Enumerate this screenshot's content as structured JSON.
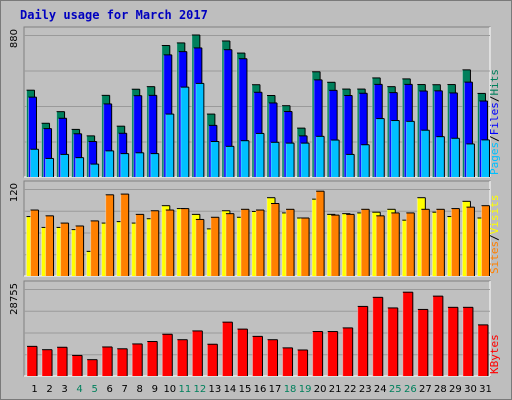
{
  "title": "Daily usage for March 2017",
  "colors": {
    "title": "#0000c0",
    "hits": "#00805c",
    "files": "#0000ff",
    "pages": "#00c0ff",
    "visits": "#ffff00",
    "sites": "#ff8000",
    "kbytes": "#ff0000",
    "weekend": "#00805c",
    "panel_bg": "#bebebe",
    "chart_bg": "#c0c0c0"
  },
  "chart_data": [
    {
      "type": "bar",
      "max_label": "880",
      "ylim": [
        0,
        880
      ],
      "legend": [
        {
          "label": "Pages",
          "color_key": "pages"
        },
        {
          "label": "/",
          "color_key": "sep"
        },
        {
          "label": "Files",
          "color_key": "files"
        },
        {
          "label": "/",
          "color_key": "sep"
        },
        {
          "label": "Hits",
          "color_key": "hits"
        }
      ],
      "categories": [
        "1",
        "2",
        "3",
        "4",
        "5",
        "6",
        "7",
        "8",
        "9",
        "10",
        "11",
        "12",
        "13",
        "14",
        "15",
        "16",
        "17",
        "18",
        "19",
        "20",
        "21",
        "22",
        "23",
        "24",
        "25",
        "26",
        "27",
        "28",
        "29",
        "30",
        "31"
      ],
      "series": [
        {
          "name": "Hits",
          "color_key": "hits",
          "values": [
            538,
            333,
            405,
            295,
            255,
            506,
            315,
            544,
            560,
            815,
            831,
            880,
            390,
            843,
            768,
            572,
            505,
            442,
            303,
            652,
            587,
            545,
            545,
            614,
            560,
            608,
            573,
            572,
            573,
            664,
            518
          ]
        },
        {
          "name": "Files",
          "color_key": "files",
          "values": [
            495,
            300,
            364,
            268,
            220,
            453,
            271,
            504,
            506,
            757,
            777,
            800,
            320,
            789,
            733,
            525,
            459,
            406,
            255,
            602,
            537,
            505,
            519,
            574,
            523,
            574,
            533,
            534,
            521,
            588,
            471
          ]
        },
        {
          "name": "Pages",
          "color_key": "pages",
          "values": [
            172,
            115,
            140,
            120,
            80,
            162,
            145,
            150,
            145,
            390,
            557,
            580,
            220,
            190,
            225,
            270,
            215,
            210,
            210,
            252,
            229,
            140,
            200,
            362,
            350,
            345,
            290,
            250,
            240,
            205,
            230
          ]
        }
      ]
    },
    {
      "type": "bar",
      "max_label": "120",
      "ylim": [
        0,
        120
      ],
      "legend": [
        {
          "label": "Sites",
          "color_key": "sites"
        },
        {
          "label": "/",
          "color_key": "sep"
        },
        {
          "label": "Visits",
          "color_key": "visits"
        }
      ],
      "categories": [
        "1",
        "2",
        "3",
        "4",
        "5",
        "6",
        "7",
        "8",
        "9",
        "10",
        "11",
        "12",
        "13",
        "14",
        "15",
        "16",
        "17",
        "18",
        "19",
        "20",
        "21",
        "22",
        "23",
        "24",
        "25",
        "26",
        "27",
        "28",
        "29",
        "30",
        "31"
      ],
      "series": [
        {
          "name": "Visits",
          "color_key": "visits",
          "values": [
            82,
            67,
            67,
            64,
            34,
            73,
            75,
            73,
            79,
            97,
            93,
            85,
            65,
            90,
            81,
            89,
            108,
            87,
            80,
            106,
            85,
            86,
            87,
            88,
            92,
            77,
            108,
            88,
            82,
            103,
            80
          ]
        },
        {
          "name": "Sites",
          "color_key": "sites",
          "values": [
            91,
            83,
            73,
            69,
            76,
            112,
            113,
            85,
            90,
            91,
            93,
            78,
            81,
            86,
            92,
            91,
            100,
            92,
            80,
            117,
            84,
            85,
            92,
            83,
            87,
            87,
            92,
            92,
            93,
            95,
            97
          ]
        }
      ]
    },
    {
      "type": "bar",
      "max_label": "28755",
      "ylim": [
        0,
        28755
      ],
      "legend": [
        {
          "label": "KBytes",
          "color_key": "kbytes"
        }
      ],
      "categories": [
        "1",
        "2",
        "3",
        "4",
        "5",
        "6",
        "7",
        "8",
        "9",
        "10",
        "11",
        "12",
        "13",
        "14",
        "15",
        "16",
        "17",
        "18",
        "19",
        "20",
        "21",
        "22",
        "23",
        "24",
        "25",
        "26",
        "27",
        "28",
        "29",
        "30",
        "31"
      ],
      "series": [
        {
          "name": "KBytes",
          "color_key": "kbytes",
          "values": [
            9800,
            8700,
            9500,
            6800,
            5400,
            9600,
            9000,
            10600,
            11400,
            13800,
            12000,
            14900,
            10500,
            17800,
            15500,
            13100,
            12000,
            9300,
            8600,
            14700,
            14700,
            15900,
            23000,
            26000,
            22500,
            27700,
            22000,
            26400,
            22700,
            22700,
            16900
          ]
        }
      ]
    }
  ],
  "days": [
    "1",
    "2",
    "3",
    "4",
    "5",
    "6",
    "7",
    "8",
    "9",
    "10",
    "11",
    "12",
    "13",
    "14",
    "15",
    "16",
    "17",
    "18",
    "19",
    "20",
    "21",
    "22",
    "23",
    "24",
    "25",
    "26",
    "27",
    "28",
    "29",
    "30",
    "31"
  ],
  "weekend_days": [
    "4",
    "5",
    "11",
    "12",
    "18",
    "19",
    "25",
    "26"
  ]
}
